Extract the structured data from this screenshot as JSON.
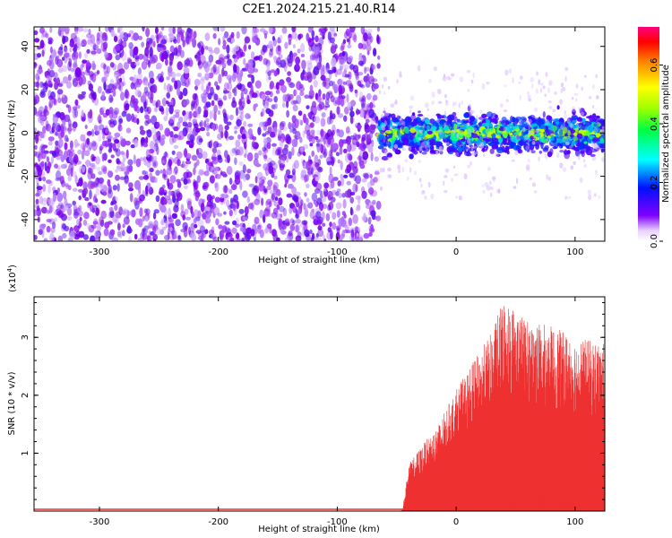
{
  "title": "C2E1.2024.215.21.40.R14",
  "chart_data": [
    {
      "type": "heatmap",
      "xlabel": "Height of straight line (km)",
      "ylabel": "Frequency (Hz)",
      "xlim": [
        -355,
        125
      ],
      "ylim": [
        -50,
        49
      ],
      "x_ticks": [
        -300,
        -200,
        -100,
        0,
        100
      ],
      "y_ticks": [
        -40,
        -20,
        0,
        20,
        40
      ],
      "colorbar": {
        "label": "Normalized spectral amplitude",
        "range": [
          0,
          0.73
        ],
        "ticks": [
          0.0,
          0.2,
          0.4,
          0.6
        ],
        "tick_labels": [
          "0.0",
          "0.2",
          "0.4",
          "0.6"
        ]
      },
      "regions": [
        {
          "name": "noise",
          "x_range": [
            -355,
            -65
          ],
          "freq_range": [
            -50,
            49
          ],
          "amplitude_range": [
            0.02,
            0.15
          ]
        },
        {
          "name": "signal",
          "x_range": [
            -65,
            125
          ],
          "freq_center": 0,
          "freq_halfwidth": [
            8,
            15
          ],
          "amplitude_peak": 0.45
        }
      ]
    },
    {
      "type": "area",
      "xlabel": "Height of straight line (km)",
      "ylabel": "SNR (10 * v/v)",
      "y_multiplier_label": "(x10",
      "y_multiplier_exponent": "4",
      "y_multiplier_suffix": ")",
      "xlim": [
        -355,
        125
      ],
      "ylim": [
        0,
        3.7
      ],
      "x_ticks": [
        -300,
        -200,
        -100,
        0,
        100
      ],
      "y_ticks": [
        1,
        2,
        3
      ],
      "color": "#ee3030",
      "envelope": [
        {
          "x": -355,
          "y": 0.01
        },
        {
          "x": -45,
          "y": 0.02
        },
        {
          "x": -40,
          "y": 0.8
        },
        {
          "x": -30,
          "y": 1.1
        },
        {
          "x": -15,
          "y": 1.5
        },
        {
          "x": 0,
          "y": 2.1
        },
        {
          "x": 15,
          "y": 2.6
        },
        {
          "x": 30,
          "y": 3.1
        },
        {
          "x": 40,
          "y": 3.7
        },
        {
          "x": 60,
          "y": 3.3
        },
        {
          "x": 80,
          "y": 3.2
        },
        {
          "x": 100,
          "y": 3.0
        },
        {
          "x": 125,
          "y": 2.9
        }
      ]
    }
  ]
}
